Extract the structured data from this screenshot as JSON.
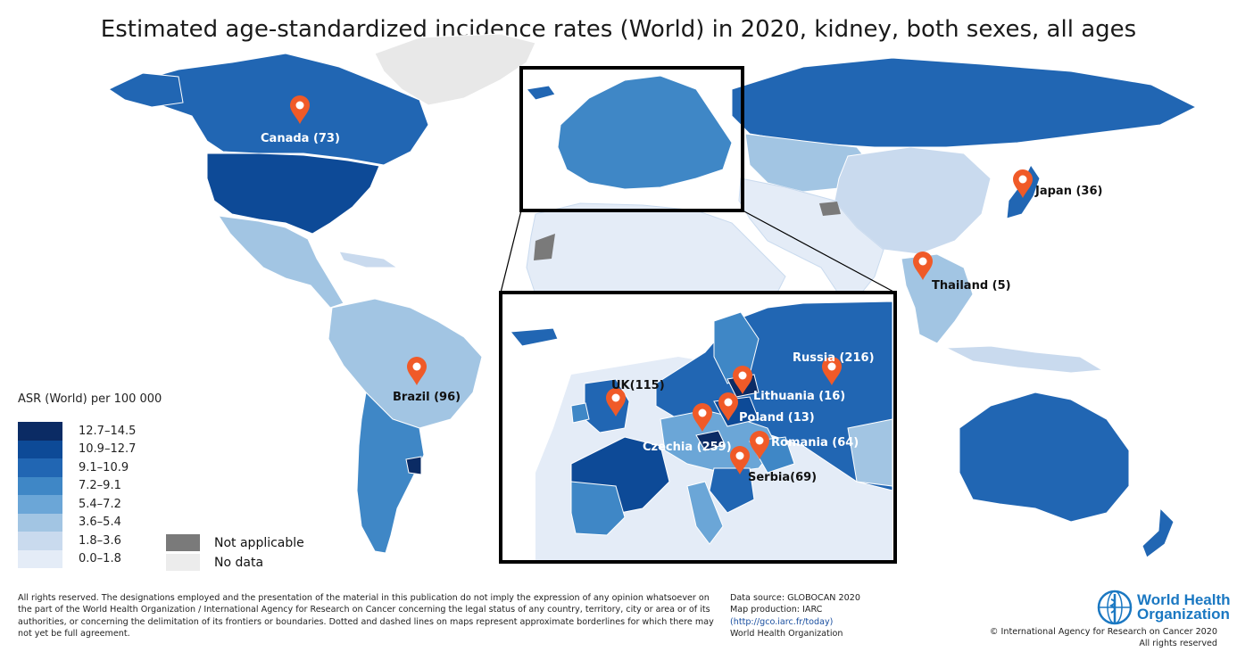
{
  "title": "Estimated age-standardized incidence rates (World) in 2020, kidney, both sexes, all ages",
  "legend": {
    "title": "ASR (World) per 100 000",
    "classes": [
      {
        "label": "12.7–14.5",
        "color": "#0b2b64"
      },
      {
        "label": "10.9–12.7",
        "color": "#0d4a97"
      },
      {
        "label": "9.1–10.9",
        "color": "#2166b3"
      },
      {
        "label": "7.2–9.1",
        "color": "#3f87c6"
      },
      {
        "label": "5.4–7.2",
        "color": "#6ba6d7"
      },
      {
        "label": "3.6–5.4",
        "color": "#a2c5e3"
      },
      {
        "label": "1.8–3.6",
        "color": "#c9daee"
      },
      {
        "label": "0.0–1.8",
        "color": "#e4ecf7"
      }
    ],
    "not_applicable": {
      "label": "Not applicable",
      "color": "#7a7a7a"
    },
    "no_data": {
      "label": "No data",
      "color": "#ececec"
    }
  },
  "markers": [
    {
      "label": "Canada (73)",
      "label_color": "#ffffff"
    },
    {
      "label": "Brazil (96)",
      "label_color": "#111111"
    },
    {
      "label": "Japan (36)",
      "label_color": "#111111"
    },
    {
      "label": "Thailand (5)",
      "label_color": "#111111"
    },
    {
      "label": "UK(115)",
      "label_color": "#111111"
    },
    {
      "label": "Russia (216)",
      "label_color": "#ffffff"
    },
    {
      "label": "Lithuania (16)",
      "label_color": "#ffffff"
    },
    {
      "label": "Poland (13)",
      "label_color": "#ffffff"
    },
    {
      "label": "Czechia (259)",
      "label_color": "#ffffff"
    },
    {
      "label": "Romania (64)",
      "label_color": "#ffffff"
    },
    {
      "label": "Serbia(69)",
      "label_color": "#111111"
    }
  ],
  "marker_color": "#f05a28",
  "footer": {
    "disclaimer": "All rights reserved. The designations employed and the presentation of the material in this publication do not imply the expression of any opinion whatsoever on the part of the World Health Organization / International Agency for Research on Cancer concerning the legal status of any country, territory, city or area or of its authorities, or concerning the delimitation of its frontiers or boundaries. Dotted and dashed lines on maps represent approximate borderlines for which there may not yet be full agreement.",
    "data_source": "Data source: GLOBOCAN 2020",
    "map_production": "Map production: IARC",
    "link": "(http://gco.iarc.fr/today)",
    "org": "World Health Organization",
    "who_line1": "World Health",
    "who_line2": "Organization",
    "copyright": "© International Agency for Research on Cancer 2020",
    "rights": "All rights reserved"
  }
}
